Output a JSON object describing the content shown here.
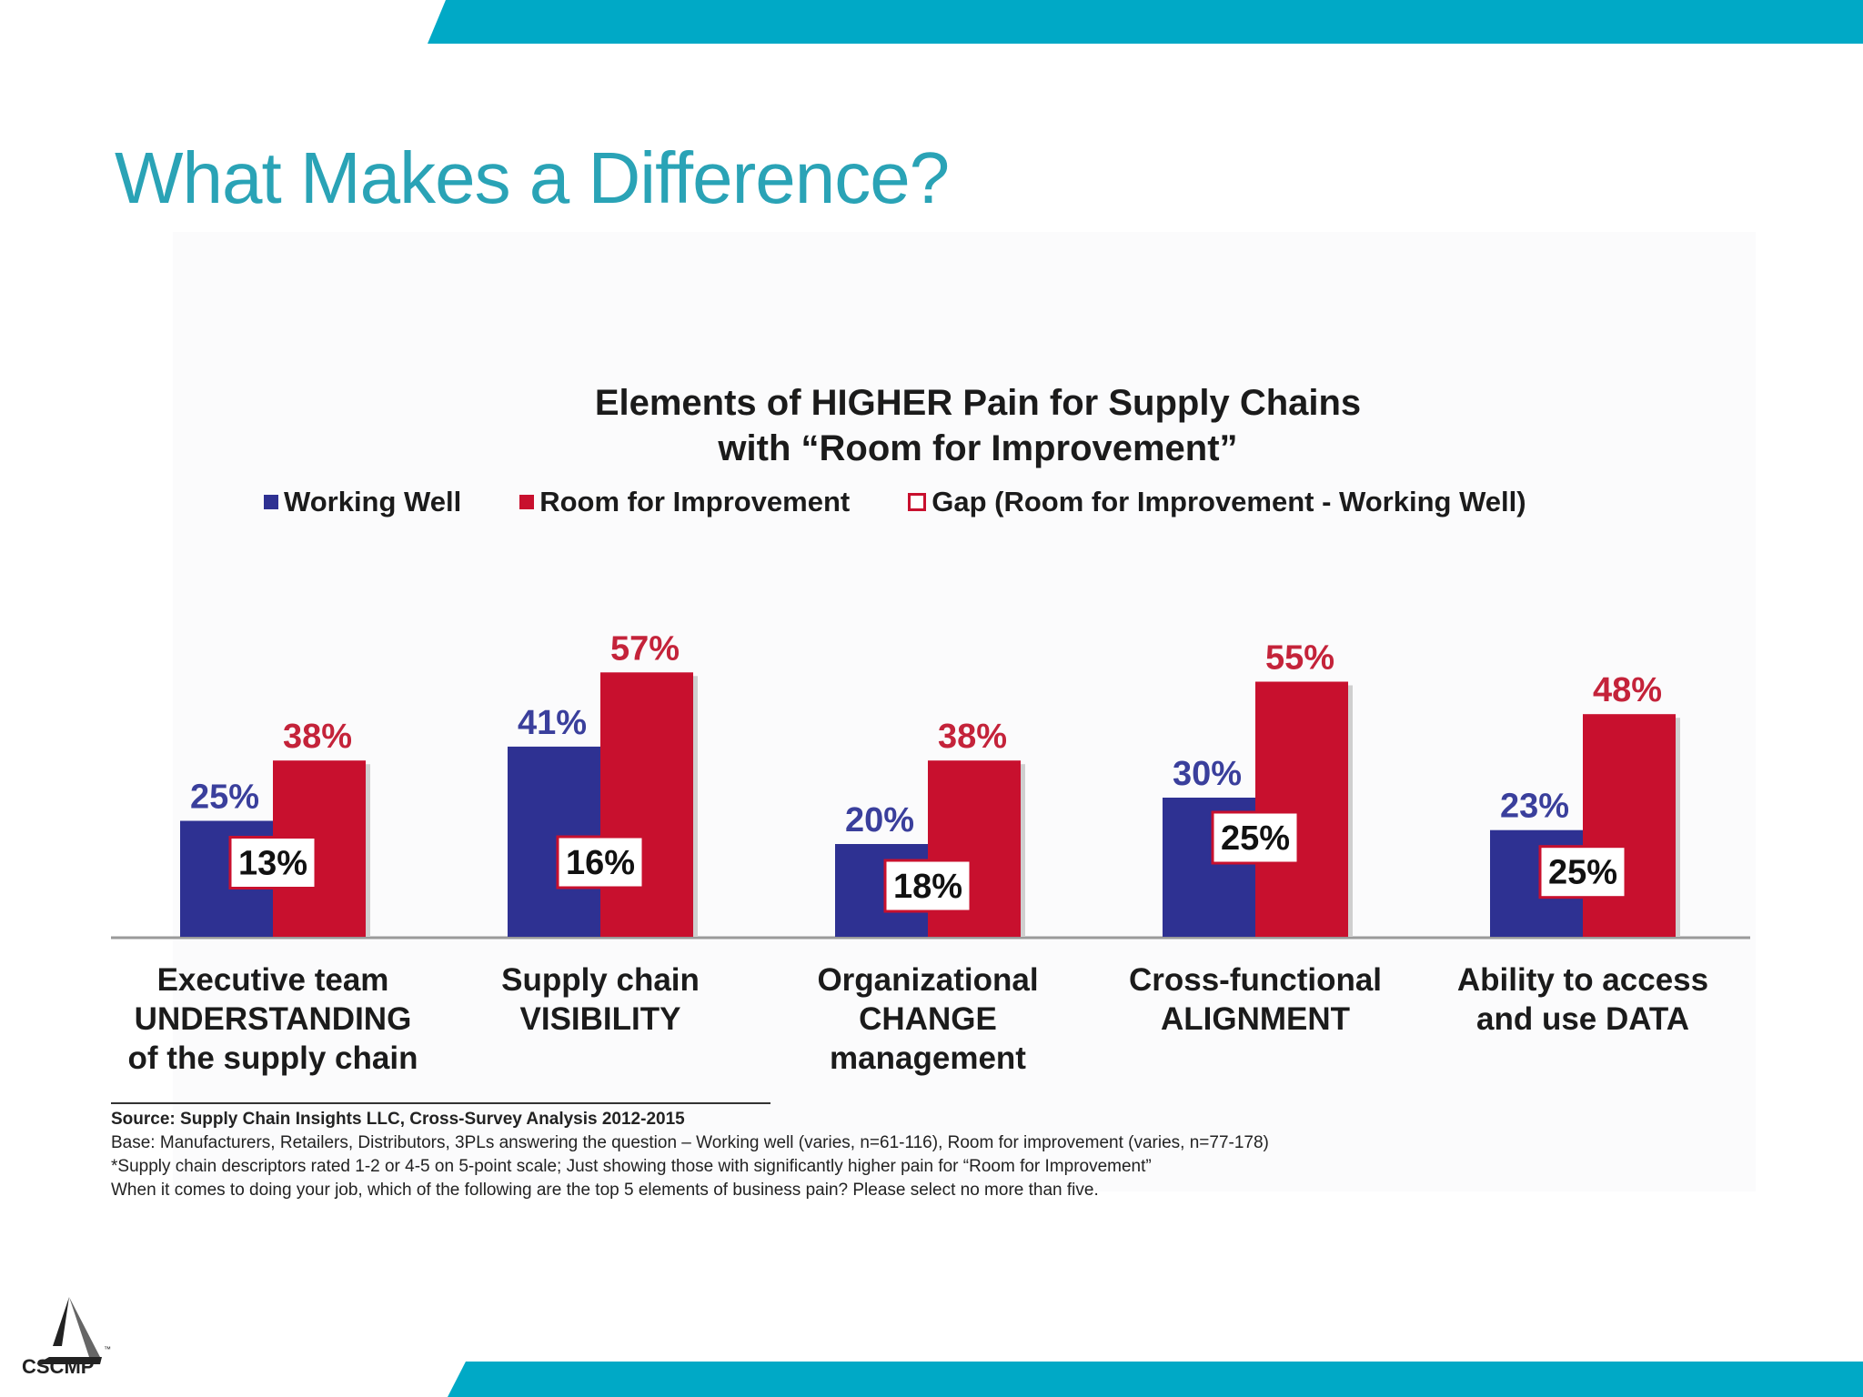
{
  "slide": {
    "title": "What Makes a Difference?",
    "brand_color": "#00a9c6",
    "logo_text": "CSCMP",
    "logo_tm": "™"
  },
  "chart_data": {
    "type": "bar",
    "title_lines": [
      "Elements of HIGHER Pain for Supply Chains",
      "with “Room for Improvement”"
    ],
    "categories": [
      [
        "Executive team",
        "UNDERSTANDING",
        "of the supply chain"
      ],
      [
        "Supply chain",
        "VISIBILITY"
      ],
      [
        "Organizational",
        "CHANGE",
        "management"
      ],
      [
        "Cross-functional",
        "ALIGNMENT"
      ],
      [
        "Ability to access",
        "and use DATA"
      ]
    ],
    "series": [
      {
        "name": "Working Well",
        "values": [
          25,
          41,
          20,
          30,
          23
        ],
        "color": "#2e3192"
      },
      {
        "name": "Room for Improvement",
        "values": [
          38,
          57,
          38,
          55,
          48
        ],
        "color": "#c8102e"
      }
    ],
    "gap": {
      "name": "Gap (Room for Improvement - Working Well)",
      "values": [
        13,
        16,
        18,
        25,
        25
      ]
    },
    "value_suffix": "%",
    "ylim": [
      0,
      60
    ],
    "grid": false,
    "legend_position": "top"
  },
  "source": {
    "line1": "Source:  Supply Chain Insights LLC, Cross-Survey Analysis 2012-2015",
    "line2": "Base:  Manufacturers, Retailers, Distributors, 3PLs answering the question – Working well (varies, n=61-116), Room for improvement (varies, n=77-178)",
    "line3": "*Supply chain descriptors rated 1-2 or 4-5 on 5-point scale; Just showing those with significantly higher pain for “Room for Improvement”",
    "line4": "When it comes to doing your job, which of the following are the top 5 elements of business pain? Please select no more than five."
  }
}
